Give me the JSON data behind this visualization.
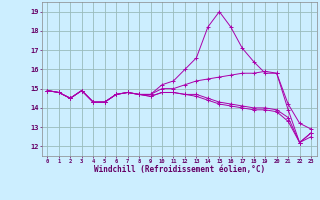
{
  "xlabel": "Windchill (Refroidissement éolien,°C)",
  "bg_color": "#cceeff",
  "grid_color": "#99bbbb",
  "line_color": "#aa00aa",
  "xlim": [
    -0.5,
    23.5
  ],
  "ylim": [
    11.5,
    19.5
  ],
  "xticks": [
    0,
    1,
    2,
    3,
    4,
    5,
    6,
    7,
    8,
    9,
    10,
    11,
    12,
    13,
    14,
    15,
    16,
    17,
    18,
    19,
    20,
    21,
    22,
    23
  ],
  "yticks": [
    12,
    13,
    14,
    15,
    16,
    17,
    18,
    19
  ],
  "series": [
    [
      14.9,
      14.8,
      14.5,
      14.9,
      14.3,
      14.3,
      14.7,
      14.8,
      14.7,
      14.7,
      15.2,
      15.4,
      16.0,
      16.6,
      18.2,
      19.0,
      18.2,
      17.1,
      16.4,
      15.8,
      15.8,
      13.9,
      12.2,
      12.7
    ],
    [
      14.9,
      14.8,
      14.5,
      14.9,
      14.3,
      14.3,
      14.7,
      14.8,
      14.7,
      14.7,
      15.0,
      15.0,
      15.2,
      15.4,
      15.5,
      15.6,
      15.7,
      15.8,
      15.8,
      15.9,
      15.8,
      14.2,
      13.2,
      12.9
    ],
    [
      14.9,
      14.8,
      14.5,
      14.9,
      14.3,
      14.3,
      14.7,
      14.8,
      14.7,
      14.6,
      14.8,
      14.8,
      14.7,
      14.7,
      14.5,
      14.3,
      14.2,
      14.1,
      14.0,
      14.0,
      13.9,
      13.5,
      12.2,
      12.7
    ],
    [
      14.9,
      14.8,
      14.5,
      14.9,
      14.3,
      14.3,
      14.7,
      14.8,
      14.7,
      14.6,
      14.8,
      14.8,
      14.7,
      14.6,
      14.4,
      14.2,
      14.1,
      14.0,
      13.9,
      13.9,
      13.8,
      13.3,
      12.2,
      12.5
    ]
  ]
}
